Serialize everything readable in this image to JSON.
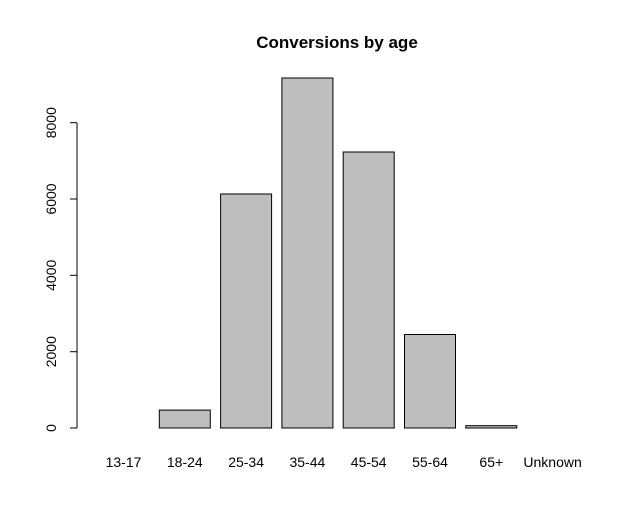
{
  "chart_data": {
    "type": "bar",
    "title": "Conversions by age",
    "xlabel": "",
    "ylabel": "",
    "categories": [
      "13-17",
      "18-24",
      "25-34",
      "35-44",
      "45-54",
      "55-64",
      "65+",
      "Unknown"
    ],
    "values": [
      0,
      470,
      6130,
      9170,
      7230,
      2450,
      60,
      0
    ],
    "ylim": [
      0,
      9170
    ],
    "yticks": [
      0,
      2000,
      4000,
      6000,
      8000
    ],
    "grid": false,
    "colors": {
      "bar_fill": "#bebebe",
      "bar_stroke": "#000000"
    }
  }
}
